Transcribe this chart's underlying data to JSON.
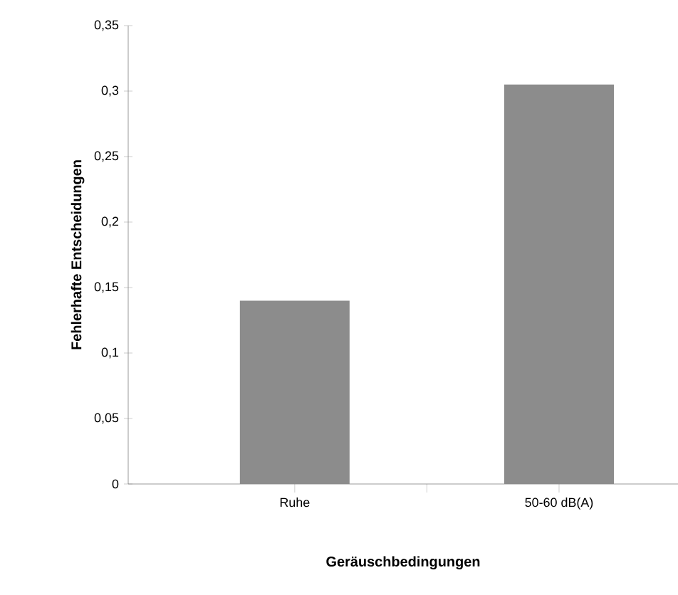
{
  "chart_data": {
    "type": "bar",
    "xlabel": "Geräuschbedingungen",
    "ylabel": "Fehlerhafte Entscheidungen",
    "categories": [
      "Ruhe",
      "50-60 dB(A)"
    ],
    "values": [
      0.14,
      0.305
    ],
    "color": "#8c8c8c",
    "ylim": [
      0,
      0.35
    ],
    "yticks": [
      {
        "value": 0,
        "label": "0"
      },
      {
        "value": 0.05,
        "label": "0,05"
      },
      {
        "value": 0.1,
        "label": "0,1"
      },
      {
        "value": 0.15,
        "label": "0,15"
      },
      {
        "value": 0.2,
        "label": "0,2"
      },
      {
        "value": 0.25,
        "label": "0,25"
      },
      {
        "value": 0.3,
        "label": "0,3"
      },
      {
        "value": 0.35,
        "label": "0,35"
      }
    ],
    "grid": false
  }
}
